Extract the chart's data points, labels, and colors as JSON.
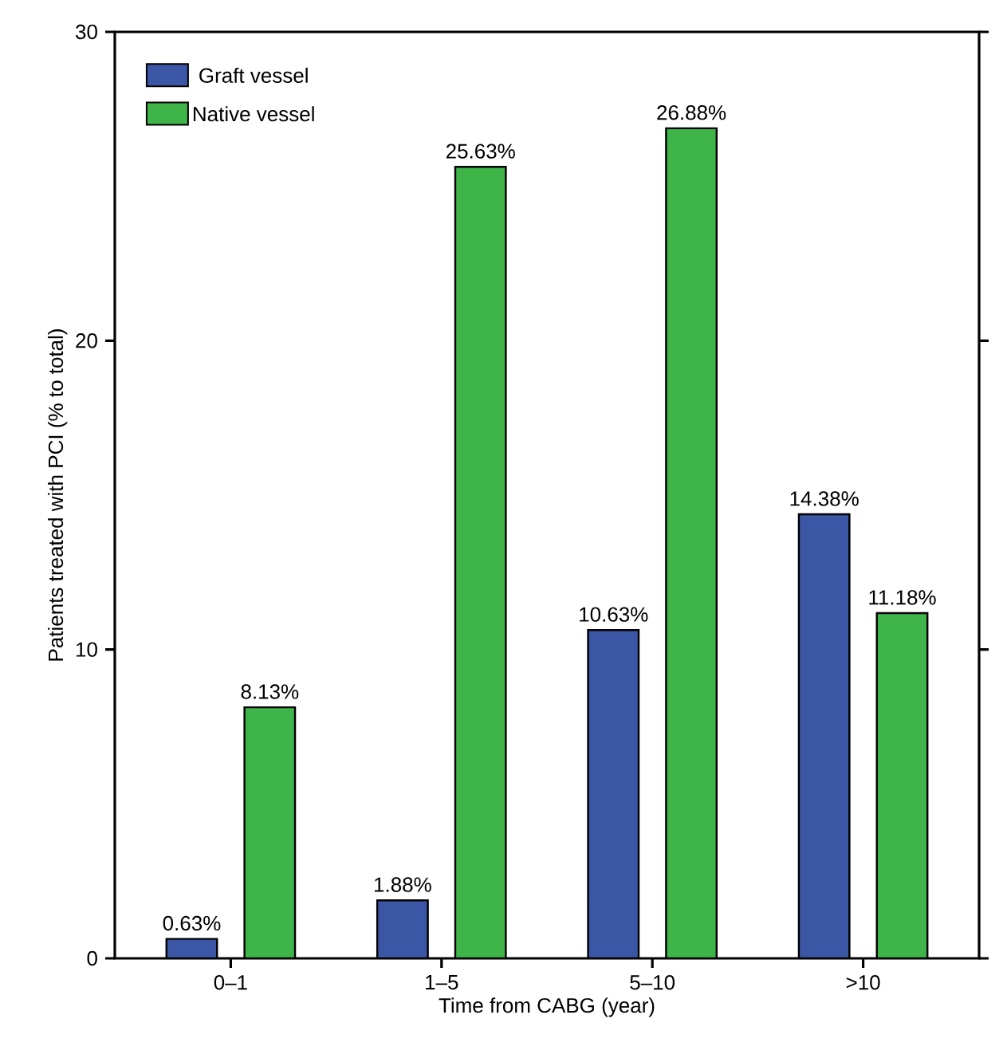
{
  "chart_data": {
    "type": "bar",
    "xlabel": "Time from CABG (year)",
    "ylabel": "Patients treated with PCI (% to total)",
    "categories": [
      "0–1",
      "1–5",
      "5–10",
      ">10"
    ],
    "series": [
      {
        "name": "Graft vessel",
        "color": "#3a56a5",
        "values": [
          0.63,
          1.88,
          10.63,
          14.38
        ],
        "value_labels": [
          "0.63%",
          "1.88%",
          "10.63%",
          "14.38%"
        ]
      },
      {
        "name": "Native vessel",
        "color": "#3eb449",
        "values": [
          8.13,
          25.63,
          26.88,
          11.18
        ],
        "value_labels": [
          "8.13%",
          "25.63%",
          "26.88%",
          "11.18%"
        ]
      }
    ],
    "ylim": [
      0,
      30
    ],
    "yticks": [
      0,
      10,
      20,
      30
    ],
    "legend": "top left"
  }
}
